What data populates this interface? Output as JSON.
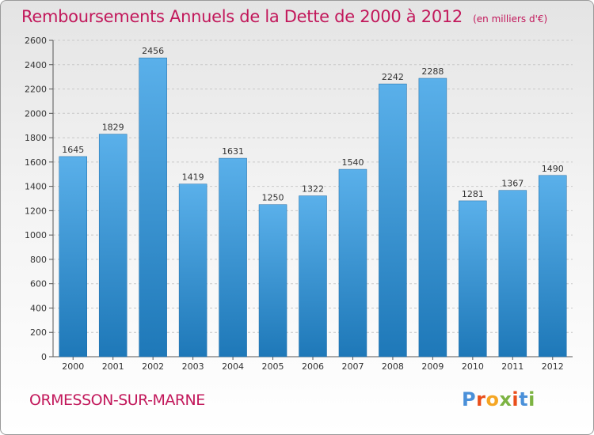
{
  "header": {
    "title": "Remboursements Annuels de la Dette de 2000 à 2012",
    "subtitle": "(en milliers d'€)"
  },
  "footer": {
    "city": "ORMESSON-SUR-MARNE",
    "logo": "Proxiti"
  },
  "colors": {
    "title": "#c2185b",
    "bar_top": "#5ab0ea",
    "bar_bottom": "#1e78b8",
    "logo": [
      "#4a90d9",
      "#e94e1b",
      "#f5a623",
      "#7cb342",
      "#e94e1b",
      "#4a90d9",
      "#7cb342"
    ]
  },
  "chart_data": {
    "type": "bar",
    "categories": [
      "2000",
      "2001",
      "2002",
      "2003",
      "2004",
      "2005",
      "2006",
      "2007",
      "2008",
      "2009",
      "2010",
      "2011",
      "2012"
    ],
    "values": [
      1645,
      1829,
      2456,
      1419,
      1631,
      1250,
      1322,
      1540,
      2242,
      2288,
      1281,
      1367,
      1490
    ],
    "yticks": [
      0,
      200,
      400,
      600,
      800,
      1000,
      1200,
      1400,
      1600,
      1800,
      2000,
      2200,
      2400,
      2600
    ],
    "ylim": [
      0,
      2600
    ],
    "grid": true,
    "data_labels": true
  }
}
